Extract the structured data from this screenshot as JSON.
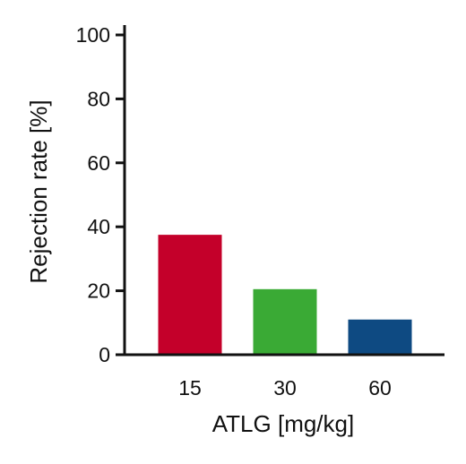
{
  "chart_data": {
    "type": "bar",
    "title": "",
    "xlabel": "ATLG [mg/kg]",
    "ylabel": "Rejection rate [%]",
    "categories": [
      "15",
      "30",
      "60"
    ],
    "values": [
      37.5,
      20.5,
      11
    ],
    "colors": [
      "#c4002a",
      "#3aaa35",
      "#0e4a82"
    ],
    "ylim": [
      0,
      100
    ],
    "yticks": [
      "0",
      "20",
      "40",
      "60",
      "80",
      "100"
    ],
    "grid": false,
    "legend": "none"
  }
}
